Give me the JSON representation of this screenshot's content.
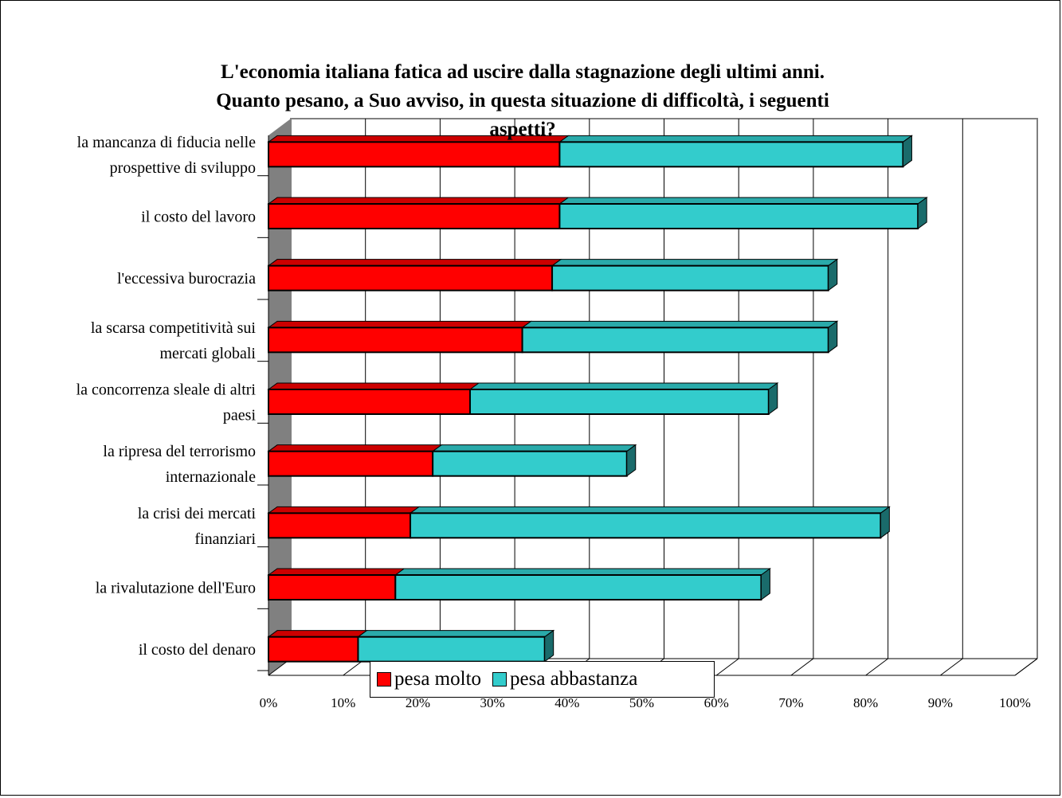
{
  "chart_data": {
    "type": "bar",
    "orientation": "horizontal",
    "stacked": true,
    "title": "L'economia italiana fatica ad uscire dalla stagnazione degli ultimi anni. Quanto pesano, a Suo avviso, in questa situazione di difficoltà, i seguenti aspetti?",
    "categories": [
      "la mancanza di fiducia nelle prospettive di sviluppo",
      "il costo del lavoro",
      "l'eccessiva burocrazia",
      "la scarsa competitività sui mercati globali",
      "la concorrenza sleale di altri paesi",
      "la ripresa del terrorismo internazionale",
      "la crisi dei mercati finanziari",
      "la rivalutazione dell'Euro",
      "il costo del denaro"
    ],
    "series": [
      {
        "name": "pesa molto",
        "color": "#ff0000",
        "values": [
          39,
          39,
          38,
          34,
          27,
          22,
          19,
          17,
          12
        ]
      },
      {
        "name": "pesa abbastanza",
        "color": "#33cccc",
        "values": [
          46,
          48,
          37,
          41,
          40,
          26,
          63,
          49,
          25
        ]
      }
    ],
    "xlim": [
      0,
      100
    ],
    "x_ticks": [
      "0%",
      "10%",
      "20%",
      "30%",
      "40%",
      "50%",
      "60%",
      "70%",
      "80%",
      "90%",
      "100%"
    ],
    "grid": true,
    "legend": "bottom",
    "style": "3d"
  }
}
